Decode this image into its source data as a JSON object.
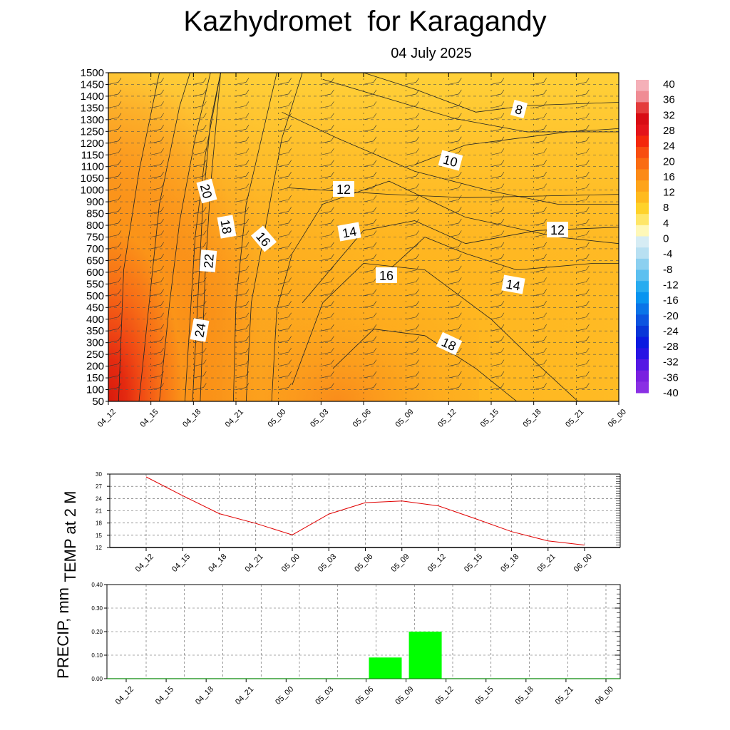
{
  "title": "Kazhydromet  for Karagandy",
  "subtitle": "04 July 2025",
  "colors": {
    "precip_bar": "#00ff00",
    "temp_line": "#e00000",
    "contour": "#222222"
  },
  "chart_data": [
    {
      "type": "heatmap",
      "title": "Kazhydromet  for Karagandy",
      "subtitle": "04 July 2025",
      "x_ticks": [
        "04_12",
        "04_15",
        "04_18",
        "04_21",
        "05_00",
        "05_03",
        "05_06",
        "05_09",
        "05_12",
        "05_15",
        "05_18",
        "05_21",
        "06_00"
      ],
      "y_ticks": [
        "50",
        "100",
        "150",
        "200",
        "250",
        "300",
        "350",
        "400",
        "450",
        "500",
        "550",
        "600",
        "650",
        "700",
        "750",
        "800",
        "850",
        "900",
        "1000",
        "1050",
        "1100",
        "1150",
        "1200",
        "1250",
        "1300",
        "1350",
        "1400",
        "1450",
        "1500"
      ],
      "colorbar_ticks": [
        "40",
        "36",
        "32",
        "28",
        "24",
        "20",
        "16",
        "12",
        "8",
        "4",
        "0",
        "-4",
        "-8",
        "-12",
        "-16",
        "-20",
        "-24",
        "-28",
        "-32",
        "-36",
        "-40"
      ],
      "contour_labels": [
        {
          "text": "8",
          "x": "05_14.6",
          "level": "1350"
        },
        {
          "text": "10",
          "x": "05_12",
          "level": "1125"
        },
        {
          "text": "12",
          "x": "05_04.5",
          "level": "1000"
        },
        {
          "text": "20",
          "x": "04_18.5",
          "level": "1000"
        },
        {
          "text": "18",
          "x": "04_20",
          "level": "800"
        },
        {
          "text": "16",
          "x": "04_22.5",
          "level": "750"
        },
        {
          "text": "14",
          "x": "05_04.5",
          "level": "800"
        },
        {
          "text": "12",
          "x": "05_19",
          "level": "800"
        },
        {
          "text": "22",
          "x": "04_18.5",
          "level": "650"
        },
        {
          "text": "16",
          "x": "05_08",
          "level": "600"
        },
        {
          "text": "14",
          "x": "05_16",
          "level": "550"
        },
        {
          "text": "24",
          "x": "04_18",
          "level": "350"
        },
        {
          "text": "18",
          "x": "05_12",
          "level": "300"
        }
      ],
      "xlim": [
        "04_12",
        "06_00"
      ],
      "ylim": [
        50,
        1500
      ]
    },
    {
      "type": "line",
      "ylabel": "TEMP at 2 M",
      "x": [
        "04_12",
        "04_15",
        "04_18",
        "04_21",
        "05_00",
        "05_03",
        "05_06",
        "05_09",
        "05_12",
        "05_15",
        "05_18",
        "05_21",
        "06_00"
      ],
      "values": [
        29.3,
        24.7,
        20.3,
        17.9,
        15.1,
        20.2,
        23.0,
        23.4,
        22.2,
        19.1,
        15.9,
        13.6,
        12.6
      ],
      "ylim": [
        12,
        30
      ],
      "y_ticks": [
        "12",
        "15",
        "18",
        "21",
        "24",
        "27",
        "30"
      ]
    },
    {
      "type": "bar",
      "ylabel": "PRECIP, mm",
      "categories": [
        "04_12",
        "04_15",
        "04_18",
        "04_21",
        "05_00",
        "05_03",
        "05_06",
        "05_09",
        "05_12",
        "05_15",
        "05_18",
        "05_21",
        "06_00"
      ],
      "values": [
        0,
        0,
        0,
        0,
        0,
        0,
        0.09,
        0.2,
        0,
        0,
        0,
        0,
        0
      ],
      "ylim": [
        0,
        0.4
      ],
      "y_ticks": [
        "0.00",
        "0.10",
        "0.20",
        "0.30",
        "0.40"
      ]
    }
  ]
}
